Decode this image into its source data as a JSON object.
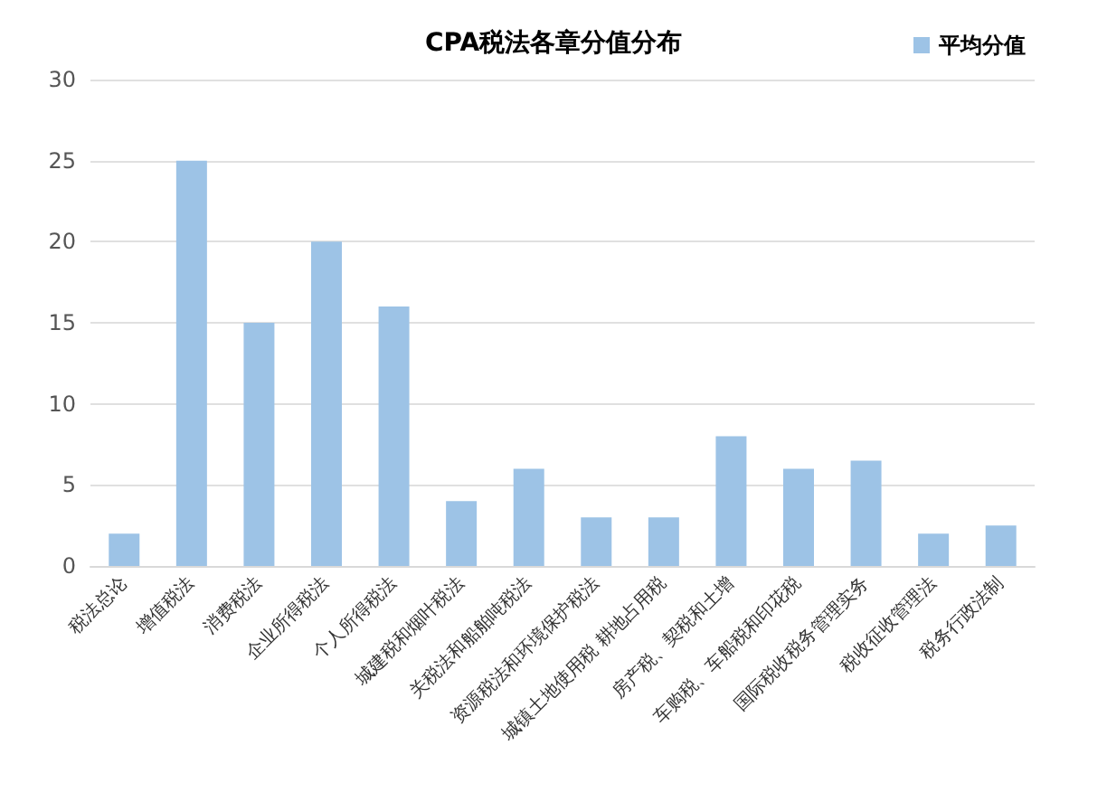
{
  "chart_data": {
    "type": "bar",
    "title": "CPA税法各章分值分布",
    "categories": [
      "税法总论",
      "增值税法",
      "消费税法",
      "企业所得税法",
      "个人所得税法",
      "城建税和烟叶税法",
      "关税法和船舶吨税法",
      "资源税法和环境保护税法",
      "城镇土地使用税 耕地占用税",
      "房产税、契税和土增",
      "车购税、车船税和印花税",
      "国际税收税务管理实务",
      "税收征收管理法",
      "税务行政法制"
    ],
    "series": [
      {
        "name": "平均分值",
        "color": "#9dc3e6",
        "values": [
          2,
          25,
          15,
          20,
          16,
          4,
          6,
          3,
          3,
          8,
          6,
          6.5,
          2,
          2.5
        ]
      }
    ],
    "ylim": [
      0,
      30
    ],
    "yticks": [
      0,
      5,
      10,
      15,
      20,
      25,
      30
    ],
    "grid": "y",
    "legend": "top right"
  }
}
